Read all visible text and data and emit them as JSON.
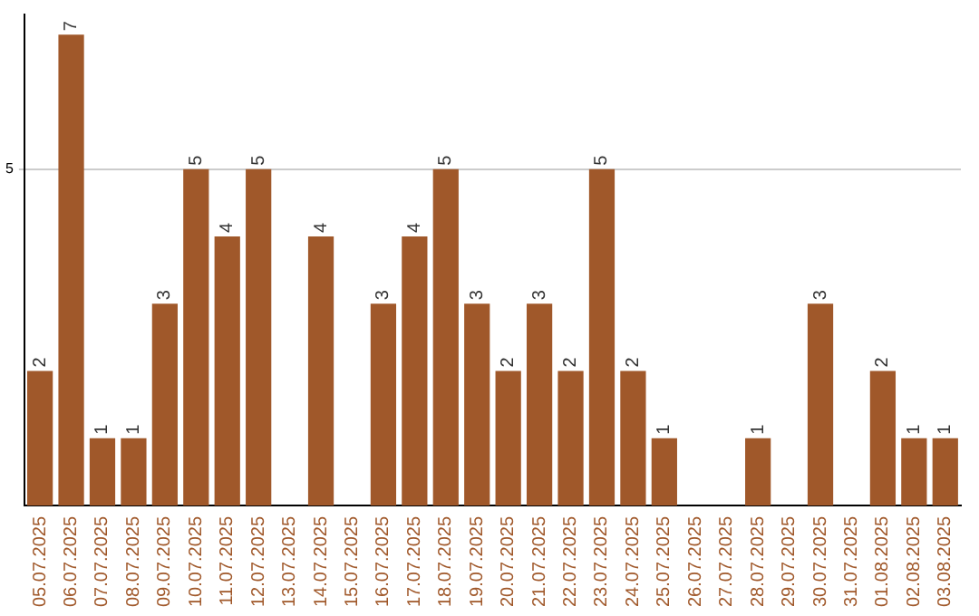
{
  "chart_data": {
    "type": "bar",
    "categories": [
      "05.07.2025",
      "06.07.2025",
      "07.07.2025",
      "08.07.2025",
      "09.07.2025",
      "10.07.2025",
      "11.07.2025",
      "12.07.2025",
      "13.07.2025",
      "14.07.2025",
      "15.07.2025",
      "16.07.2025",
      "17.07.2025",
      "18.07.2025",
      "19.07.2025",
      "20.07.2025",
      "21.07.2025",
      "22.07.2025",
      "23.07.2025",
      "24.07.2025",
      "25.07.2025",
      "26.07.2025",
      "27.07.2025",
      "28.07.2025",
      "29.07.2025",
      "30.07.2025",
      "31.07.2025",
      "01.08.2025",
      "02.08.2025",
      "03.08.2025"
    ],
    "values": [
      2,
      7,
      1,
      1,
      3,
      5,
      4,
      5,
      0,
      4,
      0,
      3,
      4,
      5,
      3,
      2,
      3,
      2,
      5,
      2,
      1,
      0,
      0,
      1,
      0,
      3,
      0,
      2,
      1,
      1
    ],
    "value_labels": [
      "2",
      "7",
      "1",
      "1",
      "3",
      "5",
      "4",
      "5",
      null,
      "4",
      null,
      "3",
      "4",
      "5",
      "3",
      "2",
      "3",
      "2",
      "5",
      "2",
      "1",
      null,
      null,
      "1",
      null,
      "3",
      null,
      "2",
      "1",
      "1"
    ],
    "color": "#a0582a",
    "ylim": [
      0,
      7.3
    ],
    "yticks": [
      5
    ],
    "grid": "y",
    "legend": false
  }
}
